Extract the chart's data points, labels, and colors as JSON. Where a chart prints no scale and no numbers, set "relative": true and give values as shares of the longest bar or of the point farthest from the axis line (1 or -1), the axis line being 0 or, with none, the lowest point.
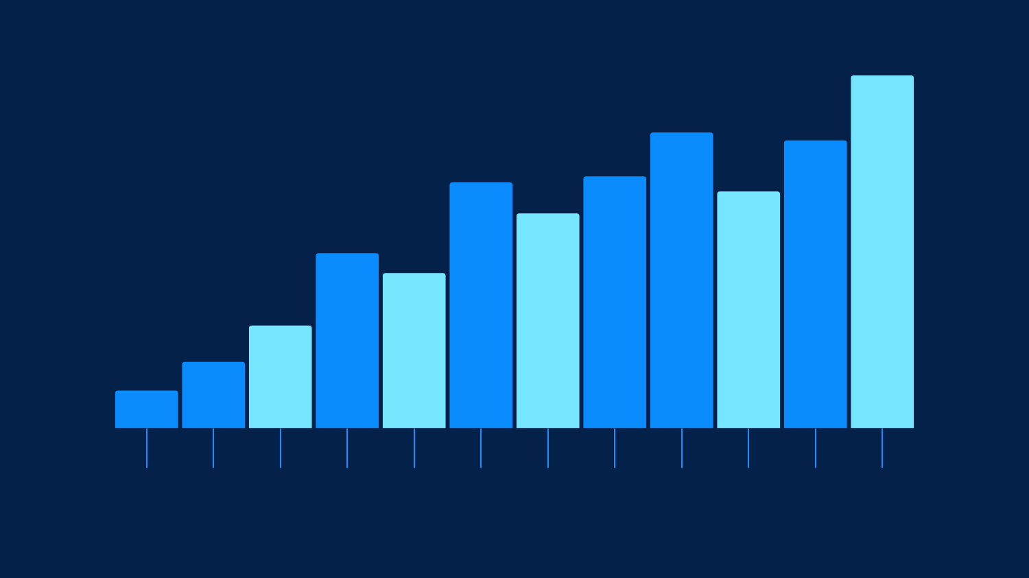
{
  "chart_data": {
    "type": "bar",
    "relative": true,
    "categories": [
      null,
      null,
      null,
      null,
      null,
      null,
      null,
      null,
      null,
      null,
      null,
      null
    ],
    "values": [
      0.107,
      0.188,
      0.291,
      0.496,
      0.44,
      0.697,
      0.609,
      0.714,
      0.838,
      0.671,
      0.816,
      1
    ],
    "colors": [
      "#0a8cff",
      "#0a8cff",
      "#76e6ff",
      "#0a8cff",
      "#76e6ff",
      "#0a8cff",
      "#76e6ff",
      "#0a8cff",
      "#0a8cff",
      "#76e6ff",
      "#0a8cff",
      "#76e6ff"
    ]
  }
}
